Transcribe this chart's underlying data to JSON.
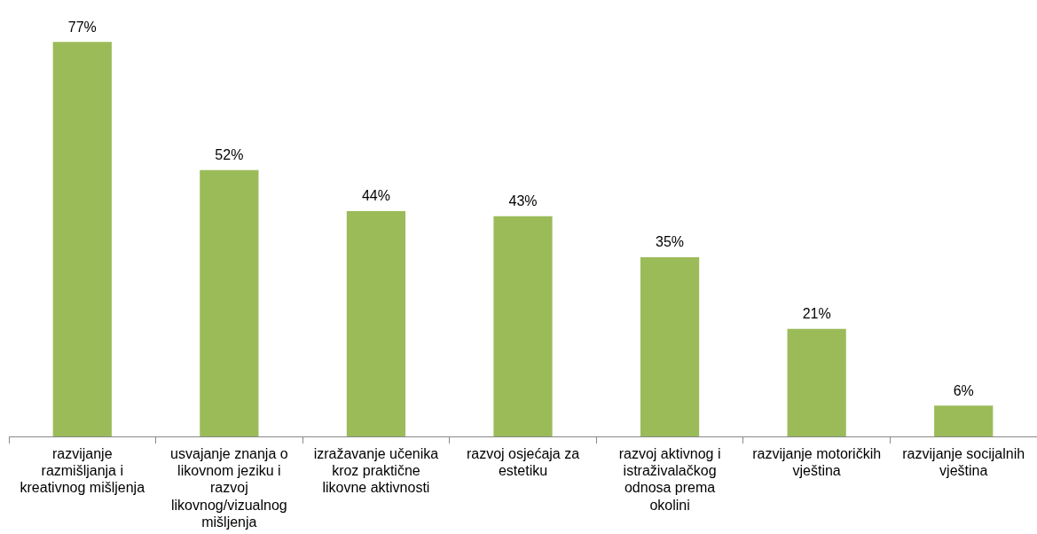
{
  "chart_data": {
    "type": "bar",
    "categories": [
      "razvijanje razmišljanja i kreativnog mišljenja",
      "usvajanje znanja o likovnom jeziku i razvoj likovnog/vizualnog mišljenja",
      "izražavanje učenika kroz praktične likovne aktivnosti",
      "razvoj osjećaja za estetiku",
      "razvoj aktivnog i istraživalačkog odnosa prema okolini",
      "razvijanje motoričkih vještina",
      "razvijanje socijalnih vještina"
    ],
    "values": [
      77,
      52,
      44,
      43,
      35,
      21,
      6
    ],
    "value_labels": [
      "77%",
      "52%",
      "44%",
      "43%",
      "35%",
      "21%",
      "6%"
    ],
    "color": "#9bbb59",
    "grid": false,
    "legend": false,
    "tick_labels": "x"
  }
}
